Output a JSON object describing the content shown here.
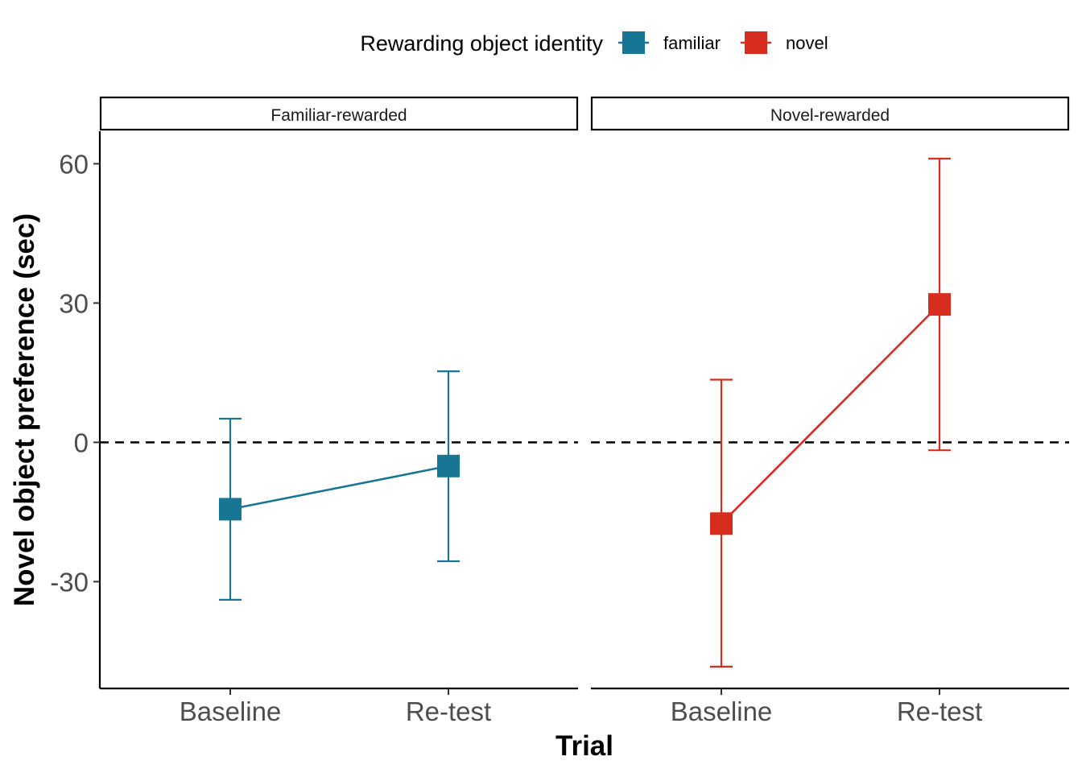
{
  "chart_data": {
    "type": "line",
    "legend": {
      "title": "Rewarding object identity",
      "position": "top",
      "entries": [
        {
          "name": "familiar",
          "color": "#177694"
        },
        {
          "name": "novel",
          "color": "#d62d1f"
        }
      ]
    },
    "xlabel": "Trial",
    "ylabel": "Novel object preference (sec)",
    "categories": [
      "Baseline",
      "Re-test"
    ],
    "ylim": [
      -53,
      67
    ],
    "yticks": [
      -30,
      0,
      30,
      60
    ],
    "reference_line": {
      "y": 0,
      "style": "dashed"
    },
    "grid": false,
    "panels": [
      {
        "title": "Familiar-rewarded",
        "series": [
          {
            "name": "familiar",
            "color": "#177694",
            "values": [
              -14.4,
              -5.1
            ],
            "lower": [
              -33.9,
              -25.6
            ],
            "upper": [
              5.1,
              15.3
            ]
          }
        ]
      },
      {
        "title": "Novel-rewarded",
        "series": [
          {
            "name": "novel",
            "color": "#d62d1f",
            "values": [
              -17.5,
              29.7
            ],
            "lower": [
              -48.3,
              -1.7
            ],
            "upper": [
              13.5,
              61.1
            ]
          }
        ]
      }
    ]
  }
}
